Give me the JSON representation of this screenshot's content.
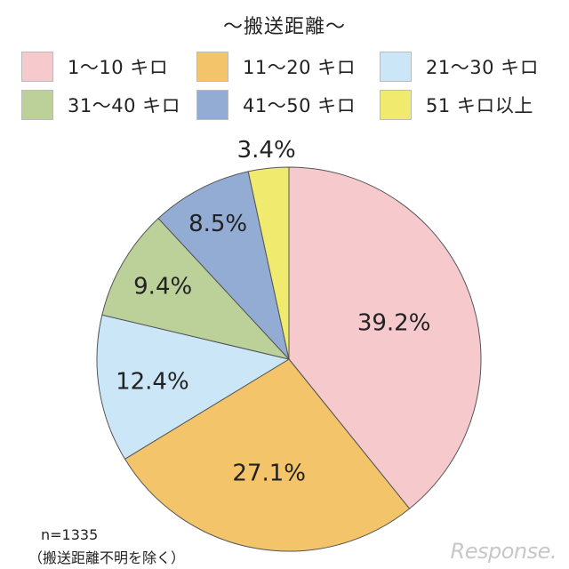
{
  "chart_data": {
    "type": "pie",
    "title": "～搬送距離～",
    "slices": [
      {
        "label": "1～10 キロ",
        "value": 39.2,
        "value_label": "39.2%",
        "color": "#f6c9cc"
      },
      {
        "label": "11～20 キロ",
        "value": 27.1,
        "value_label": "27.1%",
        "color": "#f3c46a"
      },
      {
        "label": "21～30 キロ",
        "value": 12.4,
        "value_label": "12.4%",
        "color": "#cbe6f7"
      },
      {
        "label": "31～40 キロ",
        "value": 9.4,
        "value_label": "9.4%",
        "color": "#bcd19a"
      },
      {
        "label": "41～50 キロ",
        "value": 8.5,
        "value_label": "8.5%",
        "color": "#93acd3"
      },
      {
        "label": "51 キロ以上",
        "value": 3.4,
        "value_label": "3.4%",
        "color": "#f0ea6e"
      }
    ],
    "legend_position": "top",
    "start_angle": "12 o'clock",
    "direction": "clockwise",
    "notes": [
      "n=1335",
      "（搬送距離不明を除く）"
    ]
  },
  "watermark": "Response."
}
